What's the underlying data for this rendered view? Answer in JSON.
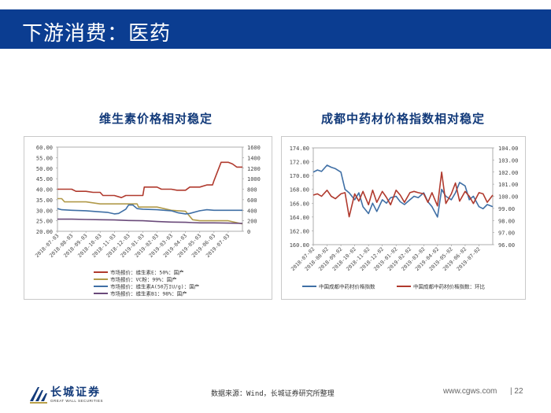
{
  "header": {
    "title": "下游消费：医药"
  },
  "footer": {
    "source": "数据来源：Wind，长城证券研究所整理",
    "site": "www.cgws.com",
    "page": "| 22",
    "logo_name": "长城证券",
    "logo_sub": "GREAT WALL SECURITIES"
  },
  "colors": {
    "header": "#0b3d91",
    "series_red": "#b03a2e",
    "series_tan": "#b19a4a",
    "series_blue": "#3f6fa5",
    "series_purple": "#6a4a7a"
  },
  "chart_data": [
    {
      "type": "line",
      "title": "维生素价格相对稳定",
      "x_ticks": [
        "2018-07-03",
        "2018-08-03",
        "2018-09-03",
        "2018-10-03",
        "2018-11-03",
        "2018-12-03",
        "2019-01-03",
        "2019-02-03",
        "2019-03-03",
        "2019-04-03",
        "2019-05-03",
        "2019-06-03",
        "2019-07-03"
      ],
      "x_range": [
        0,
        13
      ],
      "y_left": {
        "range": [
          20,
          60
        ],
        "ticks": [
          "60.00",
          "55.00",
          "50.00",
          "45.00",
          "40.00",
          "35.00",
          "30.00",
          "25.00",
          "20.00"
        ]
      },
      "y_right": {
        "range": [
          0,
          1600
        ],
        "ticks": [
          "1600",
          "1400",
          "1200",
          "1000",
          "800",
          "600",
          "400",
          "200",
          "0"
        ]
      },
      "series": [
        {
          "name": "市场报价：维生素E：50%：国产",
          "color": "#b03a2e",
          "axis": "left",
          "x": [
            0,
            0.5,
            1,
            1.3,
            2,
            2.5,
            3,
            3.2,
            4,
            4.5,
            4.8,
            5,
            6,
            6.1,
            7,
            7.3,
            7.6,
            8,
            8.4,
            9,
            9.3,
            9.7,
            10,
            10.5,
            10.9,
            11,
            11.5,
            11.9,
            12,
            12.3,
            12.6,
            13
          ],
          "y": [
            40,
            40,
            40,
            39,
            39,
            38.5,
            38.5,
            37,
            37,
            36,
            37,
            37,
            37,
            41,
            41,
            40,
            40,
            40,
            39.5,
            39.5,
            41,
            41,
            41,
            42,
            42,
            44,
            52.8,
            52.8,
            52.8,
            52,
            50.5,
            50.5
          ]
        },
        {
          "name": "市场报价：VC粉：99%：国产",
          "color": "#b19a4a",
          "axis": "left",
          "x": [
            0,
            0.3,
            0.5,
            1,
            2,
            3,
            4,
            4.5,
            5,
            5.6,
            5.7,
            6,
            7,
            8,
            9,
            9.5,
            10,
            11,
            12,
            13
          ],
          "y": [
            35.5,
            35.5,
            34,
            34,
            34,
            33,
            33,
            33,
            33,
            33,
            31.5,
            31.5,
            31.5,
            30,
            29.5,
            25.5,
            25,
            25,
            25,
            23.5
          ]
        },
        {
          "name": "市场报价：维生素A(50万IU/g)：国产",
          "color": "#3f6fa5",
          "axis": "right",
          "x": [
            0,
            0.3,
            1,
            2,
            3,
            3.5,
            4,
            4.3,
            4.8,
            5,
            5.3,
            5.6,
            6,
            7,
            7.5,
            8,
            8.5,
            9,
            9.3,
            10,
            10.5,
            11,
            12,
            13
          ],
          "y": [
            430,
            410,
            400,
            390,
            370,
            360,
            330,
            340,
            420,
            500,
            500,
            430,
            420,
            410,
            400,
            390,
            350,
            330,
            340,
            390,
            410,
            400,
            400,
            400
          ]
        },
        {
          "name": "市场报价：维生素B1：98%：国产",
          "color": "#6a4a7a",
          "axis": "right",
          "x": [
            0,
            1,
            2,
            3,
            4,
            5,
            6,
            7,
            8,
            9,
            9.5,
            10,
            11,
            12,
            13
          ],
          "y": [
            230,
            230,
            225,
            220,
            215,
            205,
            200,
            185,
            175,
            170,
            165,
            160,
            160,
            155,
            150
          ]
        }
      ]
    },
    {
      "type": "line",
      "title": "成都中药材价格指数相对稳定",
      "x_ticks": [
        "2018-07-02",
        "2018-08-02",
        "2018-09-02",
        "2018-10-02",
        "2018-11-02",
        "2018-12-02",
        "2019-01-02",
        "2019-02-02",
        "2019-03-02",
        "2019-04-02",
        "2019-05-02",
        "2019-06-02",
        "2019-07-02"
      ],
      "x_range": [
        0,
        13
      ],
      "y_left": {
        "range": [
          160,
          174
        ],
        "ticks": [
          "174.00",
          "172.00",
          "170.00",
          "168.00",
          "166.00",
          "164.00",
          "162.00",
          "160.00"
        ]
      },
      "y_right": {
        "range": [
          96,
          104
        ],
        "ticks": [
          "104.00",
          "103.00",
          "102.00",
          "101.00",
          "100.00",
          "99.00",
          "98.00",
          "97.00",
          "96.00"
        ]
      },
      "series": [
        {
          "name": "中国成都中药材价格指数",
          "color": "#3f6fa5",
          "axis": "left",
          "x": [
            0,
            0.3,
            0.6,
            1,
            1.3,
            1.6,
            2,
            2.3,
            2.6,
            3,
            3.3,
            3.6,
            4,
            4.3,
            4.6,
            5,
            5.3,
            5.6,
            6,
            6.3,
            6.6,
            7,
            7.3,
            7.6,
            8,
            8.3,
            8.6,
            9,
            9.3,
            9.6,
            10,
            10.3,
            10.6,
            11,
            11.3,
            11.6,
            12,
            12.3,
            12.6,
            13
          ],
          "y": [
            170.5,
            170.8,
            170.6,
            171.5,
            171.2,
            171,
            170.5,
            168,
            167.5,
            166.5,
            167.5,
            165.5,
            164.5,
            166,
            164.8,
            166.5,
            166,
            166.8,
            167,
            166.2,
            165.8,
            166.5,
            167,
            166.8,
            167.5,
            166.2,
            165.5,
            164,
            168,
            167,
            166.5,
            167.5,
            169,
            168.5,
            166.5,
            167,
            165.5,
            165.2,
            165.8,
            165.5
          ]
        },
        {
          "name": "中国成都中药材价格指数：环比",
          "color": "#b03a2e",
          "axis": "right",
          "x": [
            0,
            0.3,
            0.6,
            1,
            1.3,
            1.6,
            2,
            2.3,
            2.6,
            3,
            3.3,
            3.6,
            4,
            4.3,
            4.6,
            5,
            5.3,
            5.6,
            6,
            6.3,
            6.6,
            7,
            7.3,
            7.6,
            8,
            8.3,
            8.6,
            9,
            9.3,
            9.6,
            10,
            10.3,
            10.6,
            11,
            11.3,
            11.6,
            12,
            12.3,
            12.6,
            13
          ],
          "y": [
            100.1,
            100.2,
            100,
            100.5,
            100,
            99.8,
            100.2,
            100.3,
            98.3,
            100.2,
            99.6,
            100.4,
            99.3,
            100.5,
            99.5,
            100.4,
            99.9,
            99.3,
            100.5,
            100.1,
            99.5,
            100.3,
            100.4,
            100.3,
            100.2,
            99.5,
            100.3,
            99.2,
            102,
            99.4,
            100.2,
            101.1,
            99.6,
            100.4,
            100,
            99.4,
            100.3,
            100.2,
            99.5,
            100.1
          ]
        }
      ]
    }
  ]
}
